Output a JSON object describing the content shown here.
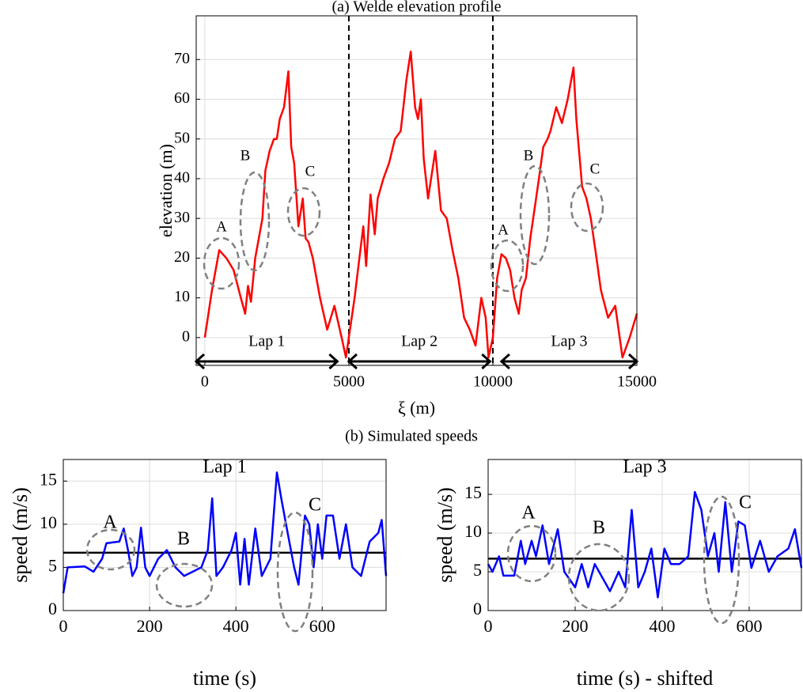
{
  "section_title": "(b) Simulated speeds",
  "chart_data": [
    {
      "type": "line",
      "title": "(a) Welde elevation profile",
      "xlabel": "ξ (m)",
      "ylabel": "elevation (m)",
      "color": "#ff0000",
      "x": [
        0,
        250,
        500,
        750,
        1000,
        1250,
        1400,
        1500,
        1600,
        1750,
        2000,
        2100,
        2250,
        2400,
        2500,
        2600,
        2750,
        2900,
        3000,
        3100,
        3250,
        3400,
        3500,
        3600,
        3750,
        4000,
        4250,
        4500,
        4750,
        4900,
        5000,
        5200,
        5400,
        5500,
        5600,
        5750,
        5900,
        6000,
        6200,
        6400,
        6600,
        6800,
        7000,
        7150,
        7300,
        7400,
        7500,
        7600,
        7750,
        8000,
        8200,
        8400,
        8600,
        8800,
        9000,
        9200,
        9400,
        9600,
        9750,
        9850,
        10000,
        10150,
        10300,
        10450,
        10600,
        10750,
        10900,
        11000,
        11150,
        11300,
        11500,
        11600,
        11750,
        11900,
        12000,
        12200,
        12400,
        12600,
        12800,
        12900,
        13100,
        13250,
        13400,
        13500,
        13600,
        13750,
        14000,
        14250,
        14500,
        14750,
        15000
      ],
      "values": [
        0,
        12,
        22,
        20,
        17,
        10,
        6,
        13,
        9,
        20,
        30,
        42,
        47,
        50,
        50,
        55,
        58,
        67,
        48,
        44,
        28,
        35,
        25,
        24,
        20,
        10,
        2,
        8,
        0,
        -5,
        0,
        10,
        22,
        28,
        18,
        36,
        26,
        35,
        40,
        44,
        50,
        52,
        65,
        72,
        58,
        55,
        60,
        45,
        35,
        47,
        32,
        30,
        22,
        15,
        5,
        2,
        -2,
        10,
        5,
        -5,
        0,
        15,
        21,
        20,
        17,
        10,
        6,
        12,
        15,
        25,
        35,
        40,
        48,
        50,
        52,
        58,
        54,
        60,
        68,
        55,
        38,
        35,
        30,
        25,
        20,
        12,
        5,
        8,
        -5,
        0,
        6
      ],
      "xlim": [
        -300,
        15000
      ],
      "ylim": [
        -7,
        81
      ],
      "xticks": [
        0,
        5000,
        10000,
        15000
      ],
      "yticks": [
        0,
        10,
        20,
        30,
        40,
        50,
        60,
        70
      ],
      "grid": true,
      "vlines": [
        5000,
        10000
      ],
      "laps": [
        {
          "label": "Lap 1",
          "range": [
            -300,
            4600
          ]
        },
        {
          "label": "Lap 2",
          "range": [
            5000,
            9900
          ]
        },
        {
          "label": "Lap 3",
          "range": [
            10300,
            15000
          ]
        }
      ],
      "annotations": [
        "A",
        "B",
        "C",
        "A",
        "B",
        "C"
      ]
    },
    {
      "type": "line",
      "title": "Lap 1",
      "xlabel": "time (s)",
      "ylabel": "speed (m/s)",
      "color": "#0000ff",
      "x": [
        0,
        10,
        50,
        70,
        90,
        100,
        130,
        140,
        150,
        160,
        170,
        180,
        190,
        200,
        220,
        240,
        260,
        280,
        300,
        320,
        335,
        345,
        355,
        370,
        390,
        400,
        410,
        420,
        430,
        445,
        460,
        480,
        495,
        505,
        520,
        535,
        545,
        560,
        570,
        580,
        590,
        600,
        610,
        625,
        640,
        655,
        670,
        690,
        710,
        730,
        738,
        748
      ],
      "values": [
        2,
        5,
        5.1,
        4.5,
        6,
        7.8,
        8,
        9.5,
        7,
        4,
        5,
        9.6,
        5,
        4,
        6,
        7,
        5,
        4,
        4.5,
        5,
        7,
        13,
        4,
        5,
        7,
        9,
        3,
        8.3,
        3,
        9.5,
        4,
        6,
        16,
        13,
        9,
        5,
        3,
        11,
        10,
        5,
        10,
        6,
        11,
        11,
        6,
        10,
        5,
        4,
        8,
        9,
        10.5,
        4
      ],
      "xlim": [
        0,
        748
      ],
      "ylim": [
        0,
        17.5
      ],
      "xticks": [
        0,
        200,
        400,
        600
      ],
      "yticks": [
        0,
        5,
        10,
        15
      ],
      "grid": true,
      "reference_line": 6.7,
      "annotations": [
        "A",
        "B",
        "C"
      ]
    },
    {
      "type": "line",
      "title": "Lap 3",
      "xlabel": "time (s) - shifted",
      "ylabel": "speed (m/s)",
      "color": "#0000ff",
      "x": [
        0,
        10,
        25,
        35,
        60,
        75,
        85,
        100,
        110,
        125,
        140,
        160,
        175,
        200,
        215,
        230,
        245,
        260,
        280,
        300,
        315,
        330,
        345,
        360,
        375,
        390,
        405,
        420,
        440,
        460,
        475,
        490,
        505,
        520,
        530,
        545,
        560,
        575,
        590,
        605,
        625,
        645,
        665,
        690,
        705,
        720
      ],
      "values": [
        6,
        5,
        7,
        4.5,
        4.5,
        9,
        6,
        9,
        7,
        11,
        6,
        10.5,
        5,
        3,
        6,
        3,
        6,
        4.5,
        2.5,
        5,
        3,
        13,
        3,
        5,
        8,
        1.7,
        8,
        6,
        6,
        7,
        15.3,
        13,
        7,
        10,
        5,
        14,
        5,
        11.5,
        11,
        5.5,
        9,
        5,
        7,
        8,
        10.5,
        5.5
      ],
      "xlim": [
        0,
        720
      ],
      "ylim": [
        0,
        19.5
      ],
      "xticks": [
        0,
        200,
        400,
        600
      ],
      "yticks": [
        0,
        5,
        10,
        15
      ],
      "grid": true,
      "reference_line": 6.7,
      "annotations": [
        "A",
        "B",
        "C"
      ]
    }
  ]
}
